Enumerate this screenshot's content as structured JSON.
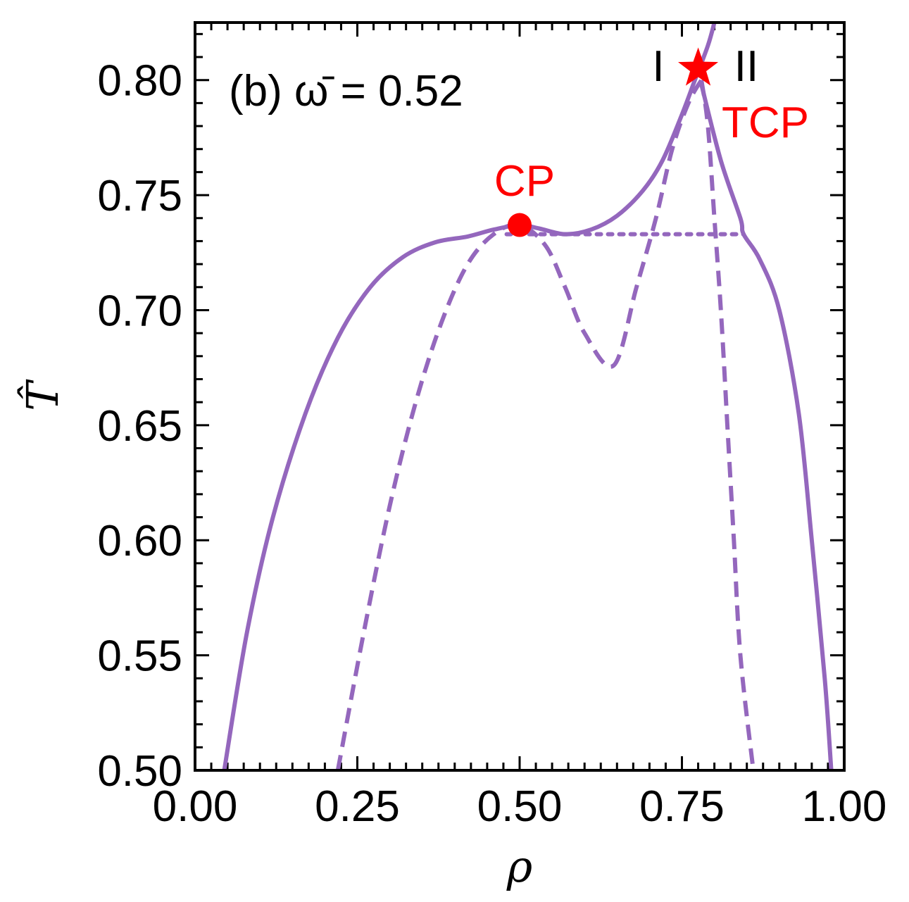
{
  "chart_data": {
    "type": "line",
    "panel_label": "(b) ω̄ = 0.52",
    "xlabel": "ρ",
    "ylabel": "T̂",
    "xlim": [
      0.0,
      1.0
    ],
    "ylim": [
      0.5,
      0.825
    ],
    "x_ticks": [
      "0.00",
      "0.25",
      "0.50",
      "0.75",
      "1.00"
    ],
    "y_ticks": [
      "0.50",
      "0.55",
      "0.60",
      "0.65",
      "0.70",
      "0.75",
      "0.80"
    ],
    "grid": false,
    "line_color": "#9467bd",
    "annotation_color": "#ff0000",
    "series": [
      {
        "style": "solid",
        "points": [
          [
            0.045,
            0.5
          ],
          [
            0.08,
            0.56
          ],
          [
            0.12,
            0.61
          ],
          [
            0.17,
            0.655
          ],
          [
            0.22,
            0.688
          ],
          [
            0.27,
            0.71
          ],
          [
            0.32,
            0.723
          ],
          [
            0.37,
            0.7295
          ],
          [
            0.42,
            0.732
          ],
          [
            0.46,
            0.735
          ],
          [
            0.5,
            0.737
          ],
          [
            0.53,
            0.7355
          ],
          [
            0.57,
            0.733
          ],
          [
            0.61,
            0.735
          ],
          [
            0.65,
            0.741
          ],
          [
            0.69,
            0.752
          ],
          [
            0.72,
            0.765
          ],
          [
            0.75,
            0.785
          ],
          [
            0.77,
            0.8
          ],
          [
            0.79,
            0.815
          ],
          [
            0.8,
            0.825
          ]
        ]
      },
      {
        "style": "solid",
        "points": [
          [
            0.78,
            0.798
          ],
          [
            0.81,
            0.765
          ],
          [
            0.84,
            0.74
          ],
          [
            0.845,
            0.733
          ],
          [
            0.87,
            0.722
          ],
          [
            0.9,
            0.7
          ],
          [
            0.93,
            0.655
          ],
          [
            0.95,
            0.6
          ],
          [
            0.97,
            0.54
          ],
          [
            0.98,
            0.5
          ]
        ]
      },
      {
        "style": "dashed",
        "points": [
          [
            0.22,
            0.5
          ],
          [
            0.26,
            0.56
          ],
          [
            0.3,
            0.615
          ],
          [
            0.34,
            0.66
          ],
          [
            0.38,
            0.695
          ],
          [
            0.42,
            0.72
          ],
          [
            0.46,
            0.733
          ],
          [
            0.5,
            0.737
          ],
          [
            0.54,
            0.728
          ],
          [
            0.57,
            0.71
          ],
          [
            0.6,
            0.69
          ],
          [
            0.645,
            0.676
          ],
          [
            0.68,
            0.71
          ],
          [
            0.71,
            0.74
          ],
          [
            0.735,
            0.77
          ],
          [
            0.76,
            0.79
          ],
          [
            0.78,
            0.8
          ]
        ]
      },
      {
        "style": "dashed",
        "points": [
          [
            0.78,
            0.8
          ],
          [
            0.79,
            0.78
          ],
          [
            0.8,
            0.74
          ],
          [
            0.81,
            0.7
          ],
          [
            0.82,
            0.65
          ],
          [
            0.83,
            0.6
          ],
          [
            0.84,
            0.55
          ],
          [
            0.86,
            0.5
          ]
        ]
      },
      {
        "style": "dotted",
        "points": [
          [
            0.48,
            0.733
          ],
          [
            0.845,
            0.733
          ]
        ]
      }
    ],
    "points": [
      {
        "label": "CP",
        "marker": "circle",
        "x": 0.5,
        "y": 0.737
      },
      {
        "label": "TCP",
        "marker": "star",
        "x": 0.775,
        "y": 0.805
      }
    ],
    "region_labels": [
      "I",
      "II"
    ]
  }
}
